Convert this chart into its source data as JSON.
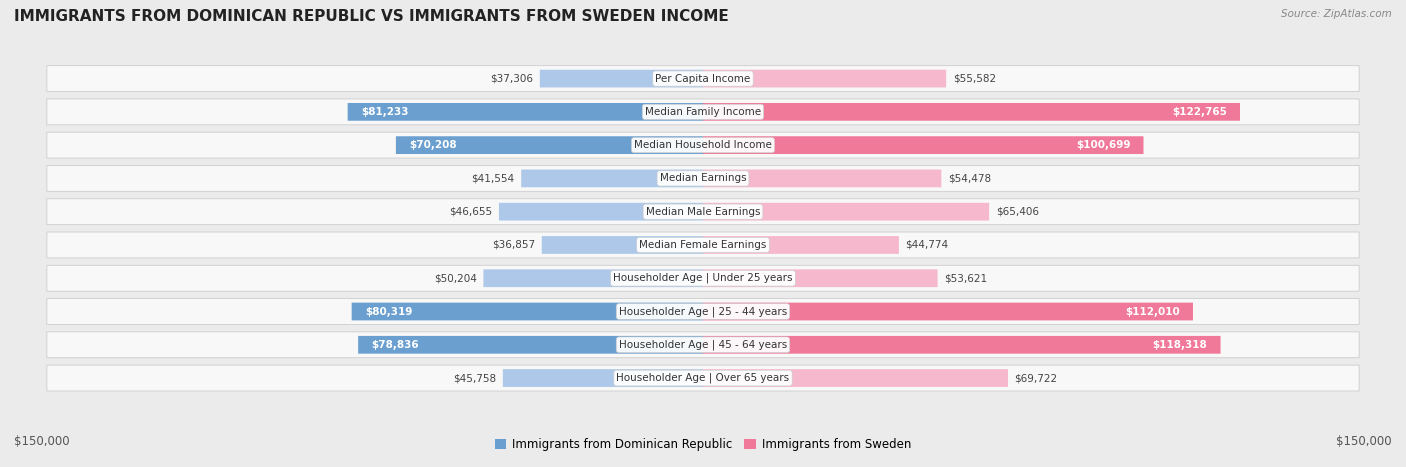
{
  "title": "IMMIGRANTS FROM DOMINICAN REPUBLIC VS IMMIGRANTS FROM SWEDEN INCOME",
  "source": "Source: ZipAtlas.com",
  "categories": [
    "Per Capita Income",
    "Median Family Income",
    "Median Household Income",
    "Median Earnings",
    "Median Male Earnings",
    "Median Female Earnings",
    "Householder Age | Under 25 years",
    "Householder Age | 25 - 44 years",
    "Householder Age | 45 - 64 years",
    "Householder Age | Over 65 years"
  ],
  "dr_values": [
    37306,
    81233,
    70208,
    41554,
    46655,
    36857,
    50204,
    80319,
    78836,
    45758
  ],
  "sw_values": [
    55582,
    122765,
    100699,
    54478,
    65406,
    44774,
    53621,
    112010,
    118318,
    69722
  ],
  "dr_labels": [
    "$37,306",
    "$81,233",
    "$70,208",
    "$41,554",
    "$46,655",
    "$36,857",
    "$50,204",
    "$80,319",
    "$78,836",
    "$45,758"
  ],
  "sw_labels": [
    "$55,582",
    "$122,765",
    "$100,699",
    "$54,478",
    "$65,406",
    "$44,774",
    "$53,621",
    "$112,010",
    "$118,318",
    "$69,722"
  ],
  "dr_color_light": "#adc8e8",
  "dr_color_dark": "#6a9fd0",
  "sw_color_light": "#f5b8cc",
  "sw_color_dark": "#f07898",
  "dr_threshold": 60000,
  "sw_threshold": 80000,
  "max_value": 150000,
  "bg_color": "#ebebeb",
  "row_bg": "#f8f8f8",
  "row_border": "#cccccc",
  "axis_label_left": "$150,000",
  "axis_label_right": "$150,000",
  "legend_dr": "Immigrants from Dominican Republic",
  "legend_sw": "Immigrants from Sweden",
  "title_fontsize": 11,
  "label_fontsize": 7.5,
  "cat_fontsize": 7.5
}
